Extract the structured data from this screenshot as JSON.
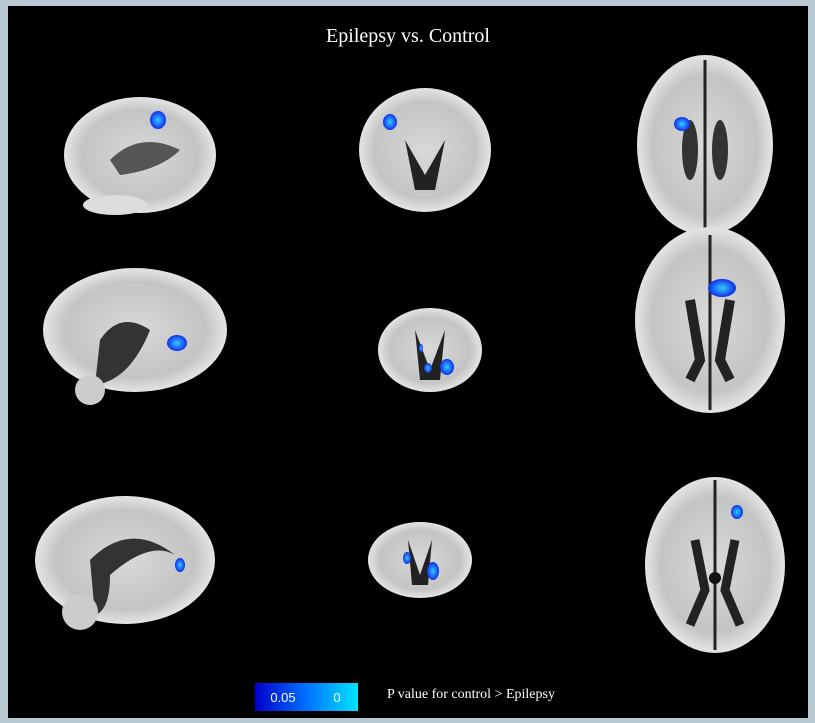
{
  "title": "Epilepsy vs. Control",
  "colorbar": {
    "labels": [
      "0.05",
      "0"
    ],
    "caption": "P value for control > Epilepsy"
  }
}
